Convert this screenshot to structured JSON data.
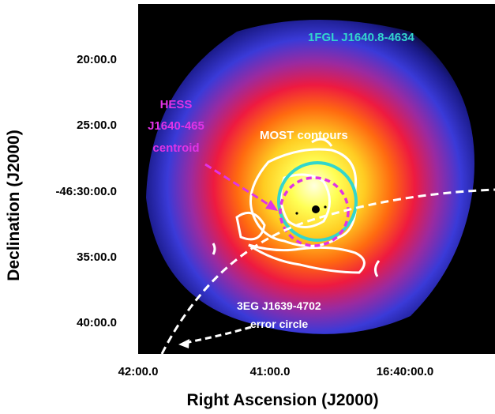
{
  "figure": {
    "ylabel": "Declination (J2000)",
    "xlabel": "Right Ascension (J2000)",
    "y_ticks": [
      "20:00.0",
      "25:00.0",
      "-46:30:00.0",
      "35:00.0",
      "40:00.0"
    ],
    "x_ticks": [
      "42:00.0",
      "41:00.0",
      "16:40:00.0"
    ],
    "annotations": {
      "fermi": "1FGL J1640.8-4634",
      "hess_line1": "HESS",
      "hess_line2": "J1640-465",
      "hess_line3": "centroid",
      "most": "MOST contours",
      "egret_line1": "3EG J1639-4702",
      "egret_line2": "error circle"
    },
    "colors": {
      "fermi": "#33d6cc",
      "hess": "#e033e6",
      "most": "#ffffff",
      "egret": "#ffffff",
      "background": "#000000"
    },
    "colormap": "heat (black-blue-red-yellow-white)"
  }
}
